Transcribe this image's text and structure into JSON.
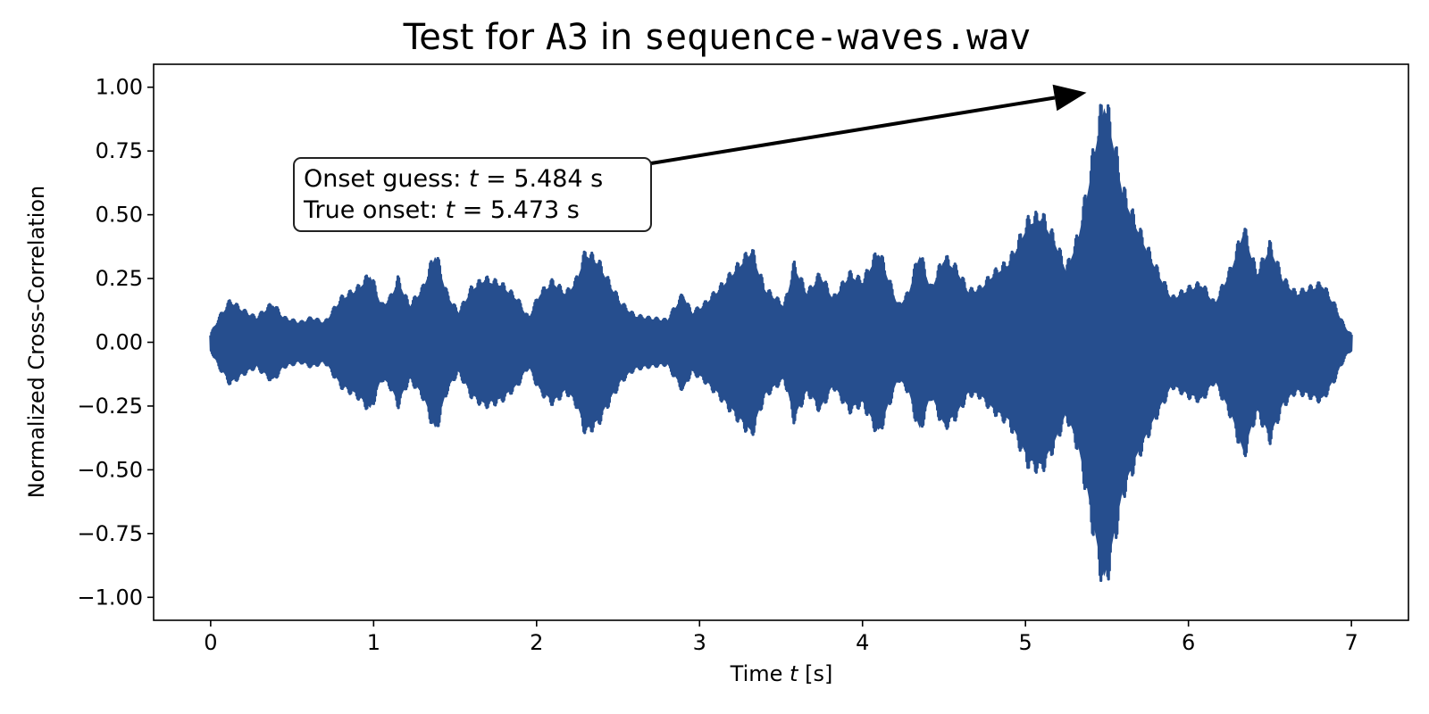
{
  "chart_data": {
    "type": "line",
    "title_parts": [
      {
        "text": "Test for ",
        "mono": false
      },
      {
        "text": "A3",
        "mono": true
      },
      {
        "text": " in ",
        "mono": false
      },
      {
        "text": "sequence-waves.wav",
        "mono": true
      }
    ],
    "xlabel_parts": [
      {
        "text": "Time ",
        "italic": false
      },
      {
        "text": "t",
        "italic": true
      },
      {
        "text": " [s]",
        "italic": false
      }
    ],
    "ylabel": "Normalized Cross-Correlation",
    "xlim": [
      -0.35,
      7.35
    ],
    "ylim": [
      -1.09,
      1.09
    ],
    "x_ticks": [
      0,
      1,
      2,
      3,
      4,
      5,
      6,
      7
    ],
    "x_tick_labels": [
      "0",
      "1",
      "2",
      "3",
      "4",
      "5",
      "6",
      "7"
    ],
    "y_ticks": [
      1.0,
      0.75,
      0.5,
      0.25,
      0.0,
      -0.25,
      -0.5,
      -0.75,
      -1.0
    ],
    "y_tick_labels": [
      "1.00",
      "0.75",
      "0.50",
      "0.25",
      "0.00",
      "−0.25",
      "−0.50",
      "−0.75",
      "−1.00"
    ],
    "grid": false,
    "series": [
      {
        "color": "#264e8e",
        "x_range": [
          0,
          7
        ],
        "envelope_points": [
          [
            0.0,
            0.03
          ],
          [
            0.05,
            0.1
          ],
          [
            0.12,
            0.17
          ],
          [
            0.2,
            0.13
          ],
          [
            0.28,
            0.1
          ],
          [
            0.38,
            0.16
          ],
          [
            0.45,
            0.1
          ],
          [
            0.55,
            0.08
          ],
          [
            0.62,
            0.1
          ],
          [
            0.7,
            0.08
          ],
          [
            0.8,
            0.18
          ],
          [
            0.9,
            0.22
          ],
          [
            0.98,
            0.28
          ],
          [
            1.05,
            0.15
          ],
          [
            1.1,
            0.18
          ],
          [
            1.15,
            0.26
          ],
          [
            1.22,
            0.15
          ],
          [
            1.3,
            0.22
          ],
          [
            1.38,
            0.37
          ],
          [
            1.45,
            0.2
          ],
          [
            1.52,
            0.12
          ],
          [
            1.6,
            0.22
          ],
          [
            1.68,
            0.26
          ],
          [
            1.78,
            0.24
          ],
          [
            1.88,
            0.18
          ],
          [
            1.95,
            0.1
          ],
          [
            2.02,
            0.2
          ],
          [
            2.1,
            0.25
          ],
          [
            2.18,
            0.2
          ],
          [
            2.24,
            0.25
          ],
          [
            2.3,
            0.37
          ],
          [
            2.38,
            0.33
          ],
          [
            2.45,
            0.24
          ],
          [
            2.52,
            0.16
          ],
          [
            2.6,
            0.11
          ],
          [
            2.68,
            0.1
          ],
          [
            2.8,
            0.09
          ],
          [
            2.9,
            0.2
          ],
          [
            2.95,
            0.12
          ],
          [
            3.02,
            0.15
          ],
          [
            3.12,
            0.22
          ],
          [
            3.22,
            0.3
          ],
          [
            3.32,
            0.38
          ],
          [
            3.4,
            0.22
          ],
          [
            3.52,
            0.15
          ],
          [
            3.58,
            0.32
          ],
          [
            3.66,
            0.2
          ],
          [
            3.74,
            0.28
          ],
          [
            3.82,
            0.18
          ],
          [
            3.92,
            0.28
          ],
          [
            4.0,
            0.25
          ],
          [
            4.1,
            0.38
          ],
          [
            4.16,
            0.26
          ],
          [
            4.22,
            0.15
          ],
          [
            4.28,
            0.2
          ],
          [
            4.35,
            0.37
          ],
          [
            4.42,
            0.22
          ],
          [
            4.5,
            0.35
          ],
          [
            4.58,
            0.3
          ],
          [
            4.65,
            0.21
          ],
          [
            4.72,
            0.22
          ],
          [
            4.8,
            0.28
          ],
          [
            4.9,
            0.33
          ],
          [
            5.02,
            0.5
          ],
          [
            5.1,
            0.52
          ],
          [
            5.18,
            0.42
          ],
          [
            5.25,
            0.3
          ],
          [
            5.32,
            0.43
          ],
          [
            5.38,
            0.63
          ],
          [
            5.45,
            0.9
          ],
          [
            5.484,
            1.0
          ],
          [
            5.52,
            0.9
          ],
          [
            5.6,
            0.62
          ],
          [
            5.67,
            0.5
          ],
          [
            5.75,
            0.38
          ],
          [
            5.82,
            0.28
          ],
          [
            5.9,
            0.18
          ],
          [
            6.0,
            0.22
          ],
          [
            6.08,
            0.24
          ],
          [
            6.16,
            0.16
          ],
          [
            6.26,
            0.3
          ],
          [
            6.34,
            0.47
          ],
          [
            6.42,
            0.28
          ],
          [
            6.5,
            0.4
          ],
          [
            6.58,
            0.26
          ],
          [
            6.66,
            0.2
          ],
          [
            6.74,
            0.22
          ],
          [
            6.82,
            0.24
          ],
          [
            6.9,
            0.15
          ],
          [
            6.96,
            0.06
          ],
          [
            7.0,
            0.03
          ]
        ]
      }
    ],
    "annotation": {
      "line1_parts": [
        {
          "text": "Onset guess: ",
          "italic": false
        },
        {
          "text": "t",
          "italic": true
        },
        {
          "text": " = 5.484 s",
          "italic": false
        }
      ],
      "line2_parts": [
        {
          "text": "True onset: ",
          "italic": false
        },
        {
          "text": "t",
          "italic": true
        },
        {
          "text": " = 5.473 s",
          "italic": false
        }
      ],
      "arrow_target": [
        5.484,
        1.0
      ]
    }
  }
}
